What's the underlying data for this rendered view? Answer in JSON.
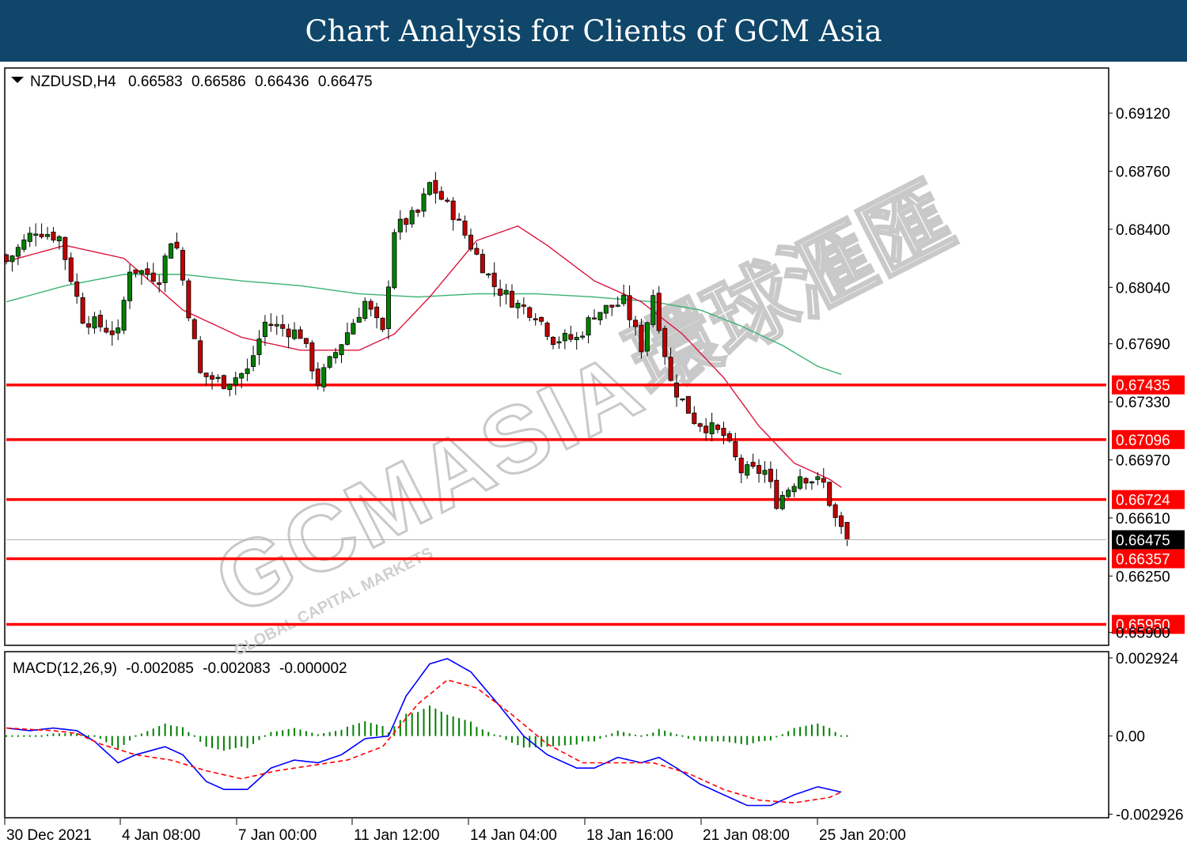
{
  "banner": {
    "title": "Chart Analysis for Clients of GCM Asia"
  },
  "watermark": {
    "brand": "GCMASIA",
    "cn": "環球滙匯",
    "sub": "GLOBAL CAPITAL MARKETS"
  },
  "chart_data": [
    {
      "type": "candlestick",
      "header": {
        "symbol": "NZDUSD,H4",
        "open": "0.66583",
        "high": "0.66586",
        "low": "0.66436",
        "close": "0.66475"
      },
      "y_ticks": [
        "0.69120",
        "0.68760",
        "0.68400",
        "0.68040",
        "0.67690",
        "0.67330",
        "0.66970",
        "0.66610",
        "0.66250",
        "0.65900"
      ],
      "ylim": [
        0.6583,
        0.6939
      ],
      "current_price": {
        "value": 0.66475,
        "label": "0.66475"
      },
      "levels": [
        {
          "value": 0.67435,
          "label": "0.67435"
        },
        {
          "value": 0.67096,
          "label": "0.67096"
        },
        {
          "value": 0.66724,
          "label": "0.66724"
        },
        {
          "value": 0.66357,
          "label": "0.66357"
        },
        {
          "value": 0.6595,
          "label": "0.65950"
        }
      ],
      "x_labels": [
        "30 Dec 2021",
        "4 Jan 08:00",
        "7 Jan 00:00",
        "11 Jan 12:00",
        "14 Jan 04:00",
        "18 Jan 16:00",
        "21 Jan 08:00",
        "25 Jan 20:00"
      ],
      "candle_count": 144,
      "candles_anchors": [
        [
          0,
          0.682
        ],
        [
          5,
          0.684
        ],
        [
          9,
          0.6835
        ],
        [
          13,
          0.6785
        ],
        [
          19,
          0.6775
        ],
        [
          21,
          0.6816
        ],
        [
          26,
          0.681
        ],
        [
          28,
          0.6834
        ],
        [
          29,
          0.6828
        ],
        [
          33,
          0.675
        ],
        [
          37,
          0.6745
        ],
        [
          41,
          0.6752
        ],
        [
          44,
          0.6782
        ],
        [
          50,
          0.6775
        ],
        [
          53,
          0.6745
        ],
        [
          57,
          0.677
        ],
        [
          61,
          0.6795
        ],
        [
          64,
          0.6775
        ],
        [
          66,
          0.684
        ],
        [
          70,
          0.685
        ],
        [
          72,
          0.6868
        ],
        [
          76,
          0.685
        ],
        [
          79,
          0.683
        ],
        [
          83,
          0.6805
        ],
        [
          87,
          0.6793
        ],
        [
          90,
          0.6788
        ],
        [
          93,
          0.6772
        ],
        [
          97,
          0.6772
        ],
        [
          100,
          0.6788
        ],
        [
          105,
          0.6795
        ],
        [
          108,
          0.6767
        ],
        [
          110,
          0.68
        ],
        [
          113,
          0.6745
        ],
        [
          117,
          0.6722
        ],
        [
          122,
          0.6712
        ],
        [
          125,
          0.669
        ],
        [
          129,
          0.669
        ],
        [
          131,
          0.6671
        ],
        [
          135,
          0.6688
        ],
        [
          139,
          0.6682
        ],
        [
          141,
          0.666
        ],
        [
          143,
          0.66475
        ]
      ],
      "ma_fast": {
        "color": "#dc143c",
        "anchors": [
          [
            0,
            0.682
          ],
          [
            10,
            0.683
          ],
          [
            20,
            0.6822
          ],
          [
            30,
            0.679
          ],
          [
            40,
            0.6773
          ],
          [
            50,
            0.6765
          ],
          [
            60,
            0.6765
          ],
          [
            66,
            0.6775
          ],
          [
            72,
            0.6798
          ],
          [
            80,
            0.6833
          ],
          [
            87,
            0.6842
          ],
          [
            92,
            0.683
          ],
          [
            100,
            0.6808
          ],
          [
            108,
            0.6795
          ],
          [
            115,
            0.6775
          ],
          [
            122,
            0.6748
          ],
          [
            128,
            0.6718
          ],
          [
            134,
            0.6695
          ],
          [
            140,
            0.6685
          ],
          [
            142,
            0.668
          ]
        ]
      },
      "ma_slow": {
        "color": "#3cb371",
        "anchors": [
          [
            0,
            0.6795
          ],
          [
            10,
            0.6805
          ],
          [
            20,
            0.6812
          ],
          [
            30,
            0.6812
          ],
          [
            40,
            0.6808
          ],
          [
            50,
            0.6805
          ],
          [
            60,
            0.68
          ],
          [
            70,
            0.6798
          ],
          [
            80,
            0.68
          ],
          [
            90,
            0.68
          ],
          [
            100,
            0.6798
          ],
          [
            110,
            0.6795
          ],
          [
            118,
            0.679
          ],
          [
            125,
            0.678
          ],
          [
            132,
            0.6768
          ],
          [
            138,
            0.6755
          ],
          [
            142,
            0.675
          ]
        ]
      }
    },
    {
      "type": "macd",
      "header": {
        "label": "MACD(12,26,9)",
        "main": "-0.002085",
        "signal": "-0.002083",
        "hist": "-0.000002"
      },
      "y_ticks": [
        "0.002924",
        "0.00",
        "-0.002926"
      ],
      "ylim": [
        -0.003,
        0.0031
      ],
      "main_line": {
        "color": "#0000ff",
        "anchors": [
          [
            0,
            0.0003
          ],
          [
            4,
            0.0002
          ],
          [
            8,
            0.0003
          ],
          [
            12,
            0.0002
          ],
          [
            15,
            -0.0002
          ],
          [
            19,
            -0.001
          ],
          [
            22,
            -0.0007
          ],
          [
            27,
            -0.0004
          ],
          [
            30,
            -0.0007
          ],
          [
            34,
            -0.0017
          ],
          [
            37,
            -0.002
          ],
          [
            41,
            -0.002
          ],
          [
            45,
            -0.0012
          ],
          [
            49,
            -0.0009
          ],
          [
            53,
            -0.001
          ],
          [
            57,
            -0.0007
          ],
          [
            61,
            -0.0001
          ],
          [
            65,
            0.0
          ],
          [
            68,
            0.0015
          ],
          [
            72,
            0.0027
          ],
          [
            75,
            0.0029
          ],
          [
            79,
            0.0024
          ],
          [
            84,
            0.0011
          ],
          [
            88,
            0.0
          ],
          [
            92,
            -0.0007
          ],
          [
            97,
            -0.0012
          ],
          [
            100,
            -0.0012
          ],
          [
            104,
            -0.0008
          ],
          [
            108,
            -0.001
          ],
          [
            111,
            -0.0008
          ],
          [
            114,
            -0.0012
          ],
          [
            118,
            -0.0018
          ],
          [
            122,
            -0.0022
          ],
          [
            126,
            -0.0026
          ],
          [
            130,
            -0.0026
          ],
          [
            134,
            -0.0022
          ],
          [
            138,
            -0.0019
          ],
          [
            142,
            -0.0021
          ]
        ]
      },
      "signal_line": {
        "color": "#ff0000",
        "anchors": [
          [
            0,
            0.0003
          ],
          [
            8,
            0.0002
          ],
          [
            12,
            0.0001
          ],
          [
            16,
            -0.0003
          ],
          [
            22,
            -0.0007
          ],
          [
            28,
            -0.0009
          ],
          [
            34,
            -0.0013
          ],
          [
            40,
            -0.0016
          ],
          [
            46,
            -0.0013
          ],
          [
            52,
            -0.0011
          ],
          [
            58,
            -0.0009
          ],
          [
            64,
            -0.0004
          ],
          [
            70,
            0.0012
          ],
          [
            75,
            0.0021
          ],
          [
            80,
            0.0018
          ],
          [
            86,
            0.0008
          ],
          [
            92,
            -0.0003
          ],
          [
            98,
            -0.001
          ],
          [
            104,
            -0.001
          ],
          [
            110,
            -0.001
          ],
          [
            116,
            -0.0014
          ],
          [
            122,
            -0.002
          ],
          [
            128,
            -0.0024
          ],
          [
            134,
            -0.0025
          ],
          [
            140,
            -0.0023
          ],
          [
            142,
            -0.0021
          ]
        ]
      },
      "histogram_color": "#008000"
    }
  ]
}
